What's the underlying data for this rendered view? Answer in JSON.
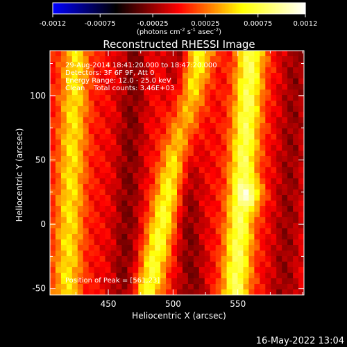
{
  "chart_data": {
    "type": "heatmap",
    "title": "Reconstructed RHESSI Image",
    "xlabel": "Heliocentric X (arcsec)",
    "ylabel": "Heliocentric Y (arcsec)",
    "xlim": [
      405,
      601
    ],
    "ylim": [
      -55,
      135
    ],
    "xticks": [
      450,
      500,
      550
    ],
    "xtick_labels": [
      "450",
      "500",
      "550"
    ],
    "yticks": [
      -50,
      0,
      50,
      100
    ],
    "ytick_labels": [
      "-50",
      "0",
      "50",
      "100"
    ],
    "colorbar": {
      "range": [
        -0.0012,
        0.0012
      ],
      "ticks": [
        -0.0012,
        -0.00075,
        -0.00025,
        0.00025,
        0.00075,
        0.0012
      ],
      "tick_labels": [
        "-0.0012",
        "-0.00075",
        "-0.00025",
        "0.00025",
        "0.00075",
        "0.0012"
      ],
      "unit_label": "(photons cm-2 s-1 asec-2)",
      "colormap": [
        "#0000ff",
        "#000000",
        "#ff0000",
        "#ffff00",
        "#ffffff"
      ]
    },
    "annotations": [
      "29-Aug-2014 18:41:20.000 to 18:47:20.000",
      "Detectors: 3F 6F 9F, Att 0",
      "Energy Range: 12.0 - 25.0 keV",
      "Clean    Total counts: 3.46E+03"
    ],
    "peak_label": "Position of Peak = [561,23]",
    "peak": {
      "x": 561,
      "y": 23
    },
    "image_model": {
      "description": "diagonal stripe pattern of positive (red/yellow) and negative (purple) flux",
      "stripes": [
        {
          "x_at_top": 425,
          "x_at_bottom": 418,
          "value": 0.00055
        },
        {
          "x_at_top": 470,
          "x_at_bottom": 462,
          "value": -0.0003
        },
        {
          "x_at_top": 520,
          "x_at_bottom": 480,
          "value": 0.0007
        },
        {
          "x_at_top": 505,
          "x_at_bottom": 515,
          "value": -0.0003
        },
        {
          "x_at_top": 560,
          "x_at_bottom": 548,
          "value": 0.0008
        },
        {
          "x_at_top": 595,
          "x_at_bottom": 585,
          "value": -0.00025
        }
      ]
    }
  },
  "footer": {
    "timestamp": "16-May-2022 13:04"
  }
}
